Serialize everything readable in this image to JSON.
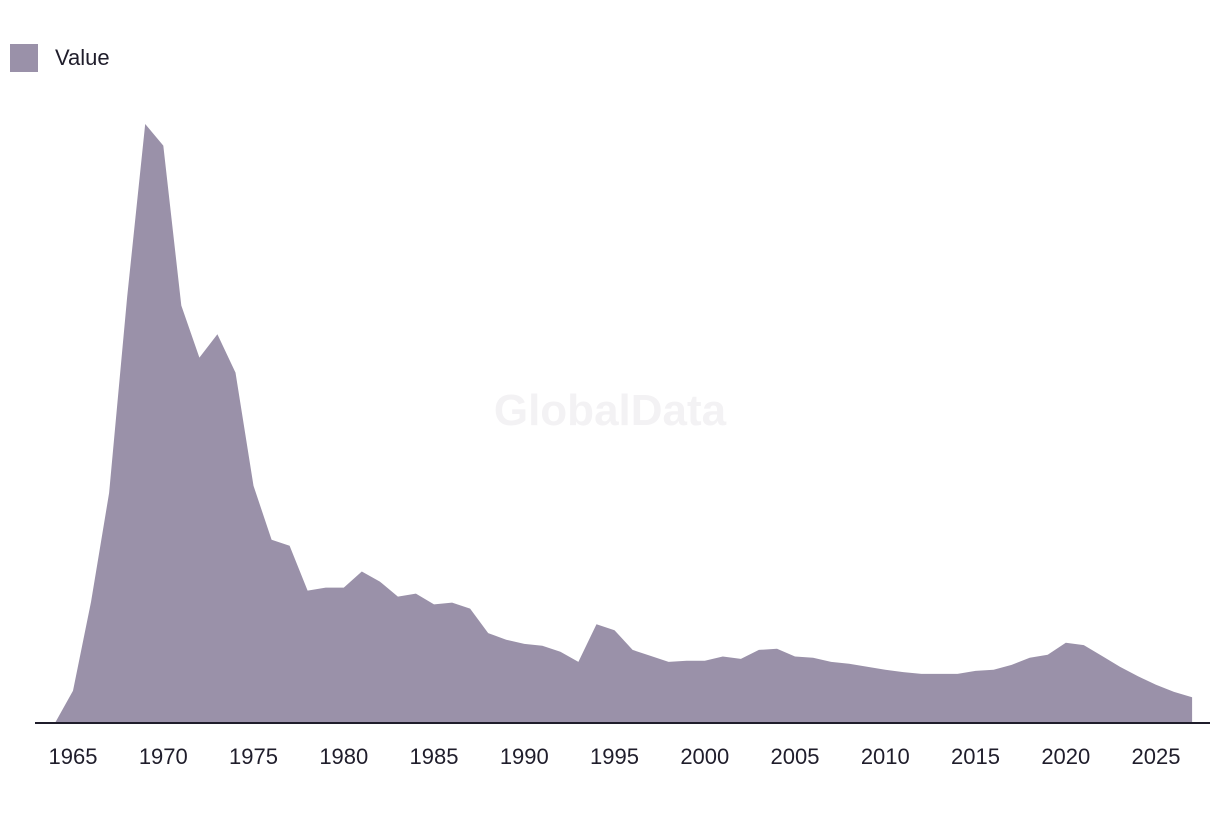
{
  "legend": {
    "label": "Value"
  },
  "watermark": "GlobalData",
  "colors": {
    "area": "#9a91a9",
    "axis": "#1f1d2b",
    "text": "#1f1d2b",
    "watermark": "#f3f2f4"
  },
  "chart_data": {
    "type": "area",
    "title": "",
    "xlabel": "",
    "ylabel": "",
    "legend_position": "top-left",
    "grid": false,
    "xlim": [
      1963,
      2028
    ],
    "ylim": [
      0,
      100
    ],
    "xticks": [
      "1965",
      "1970",
      "1975",
      "1980",
      "1985",
      "1990",
      "1995",
      "2000",
      "2005",
      "2010",
      "2015",
      "2020",
      "2025"
    ],
    "series": [
      {
        "name": "Value",
        "x": [
          1964,
          1965,
          1966,
          1967,
          1968,
          1969,
          1970,
          1971,
          1972,
          1973,
          1974,
          1975,
          1976,
          1977,
          1978,
          1979,
          1980,
          1981,
          1982,
          1983,
          1984,
          1985,
          1986,
          1987,
          1988,
          1989,
          1990,
          1991,
          1992,
          1993,
          1994,
          1995,
          1996,
          1997,
          1998,
          1999,
          2000,
          2001,
          2002,
          2003,
          2004,
          2005,
          2006,
          2007,
          2008,
          2009,
          2010,
          2011,
          2012,
          2013,
          2014,
          2015,
          2016,
          2017,
          2018,
          2019,
          2020,
          2021,
          2022,
          2023,
          2024,
          2025,
          2026,
          2027
        ],
        "y": [
          0,
          5.4,
          20.2,
          38.4,
          71.2,
          100,
          96.4,
          69.7,
          61.0,
          64.9,
          58.5,
          39.6,
          30.6,
          29.6,
          22.1,
          22.6,
          22.6,
          25.3,
          23.6,
          21.1,
          21.6,
          19.8,
          20.1,
          19.1,
          15.0,
          13.9,
          13.2,
          12.9,
          11.9,
          10.2,
          16.5,
          15.5,
          12.2,
          11.2,
          10.2,
          10.4,
          10.4,
          11.1,
          10.7,
          12.2,
          12.4,
          11.1,
          10.9,
          10.2,
          9.9,
          9.4,
          8.9,
          8.5,
          8.2,
          8.2,
          8.2,
          8.7,
          8.9,
          9.7,
          10.9,
          11.4,
          13.4,
          13.0,
          11.2,
          9.4,
          7.8,
          6.4,
          5.2,
          4.3
        ]
      }
    ]
  }
}
